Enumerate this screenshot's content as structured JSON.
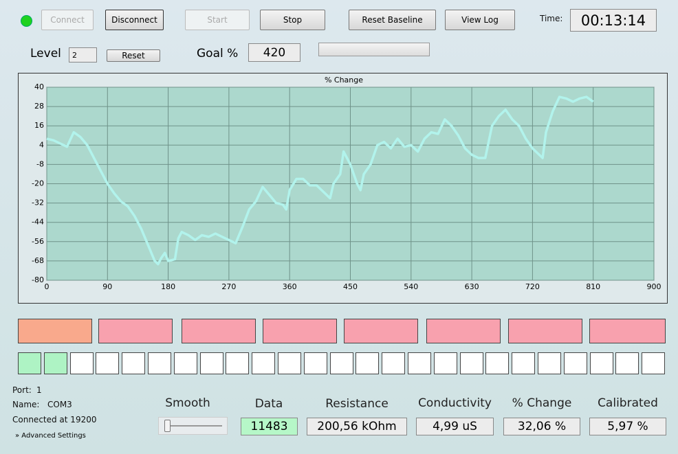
{
  "toolbar": {
    "connect": "Connect",
    "disconnect": "Disconnect",
    "start": "Start",
    "stop": "Stop",
    "reset_baseline": "Reset Baseline",
    "view_log": "View Log",
    "time_label": "Time:",
    "time": "00:13:14"
  },
  "level": {
    "label": "Level",
    "value": "2",
    "reset": "Reset"
  },
  "goal": {
    "label": "Goal %",
    "value": "420"
  },
  "chart_data": {
    "type": "line",
    "title": "% Change",
    "x": [
      0,
      10,
      20,
      30,
      40,
      50,
      60,
      70,
      80,
      90,
      100,
      110,
      120,
      130,
      140,
      150,
      160,
      165,
      170,
      175,
      180,
      190,
      195,
      200,
      210,
      220,
      230,
      240,
      250,
      260,
      270,
      280,
      290,
      300,
      310,
      320,
      330,
      340,
      350,
      355,
      360,
      370,
      380,
      390,
      400,
      410,
      420,
      425,
      435,
      440,
      450,
      460,
      465,
      470,
      480,
      490,
      500,
      510,
      520,
      530,
      540,
      550,
      560,
      570,
      580,
      590,
      600,
      610,
      620,
      630,
      640,
      650,
      660,
      670,
      680,
      690,
      700,
      710,
      720,
      735,
      740,
      750,
      760,
      770,
      780,
      790,
      800,
      810
    ],
    "series": [
      {
        "color": "#b2f3ec",
        "values": [
          8,
          7,
          5,
          3,
          12,
          9,
          4,
          -4,
          -12,
          -20,
          -26,
          -31,
          -34,
          -40,
          -48,
          -58,
          -68,
          -70,
          -66,
          -63,
          -68,
          -67,
          -54,
          -50,
          -52,
          -55,
          -52,
          -53,
          -51,
          -53,
          -55,
          -57,
          -47,
          -36,
          -31,
          -22,
          -27,
          -32,
          -33,
          -36,
          -24,
          -17,
          -17,
          -21,
          -21,
          -25,
          -29,
          -20,
          -14,
          0,
          -8,
          -20,
          -24,
          -14,
          -8,
          4,
          6,
          2,
          8,
          3,
          4,
          0,
          8,
          12,
          11,
          20,
          16,
          10,
          2,
          -2,
          -4,
          -4,
          16,
          22,
          26,
          20,
          16,
          8,
          2,
          -4,
          12,
          25,
          34,
          33,
          31,
          33,
          34,
          31
        ]
      }
    ],
    "xlim": [
      0,
      900
    ],
    "xticks": [
      0,
      90,
      180,
      270,
      360,
      450,
      540,
      630,
      720,
      810,
      900
    ],
    "ylim": [
      -80,
      40
    ],
    "yticks": [
      40,
      28,
      16,
      4,
      -8,
      -20,
      -32,
      -44,
      -56,
      -68,
      -80
    ],
    "grid": true
  },
  "status": {
    "port_label": "Port:",
    "port": "1",
    "name_label": "Name:",
    "name": "COM3",
    "connected": "Connected at 19200",
    "advanced": "Advanced Settings"
  },
  "readouts": {
    "smooth": "Smooth",
    "data_label": "Data",
    "data": "11483",
    "resistance_label": "Resistance",
    "resistance": "200,56 kOhm",
    "conductivity_label": "Conductivity",
    "conductivity": "4,99 uS",
    "change_label": "% Change",
    "change": "32,06 %",
    "calibrated_label": "Calibrated",
    "calibrated": "5,97 %"
  }
}
